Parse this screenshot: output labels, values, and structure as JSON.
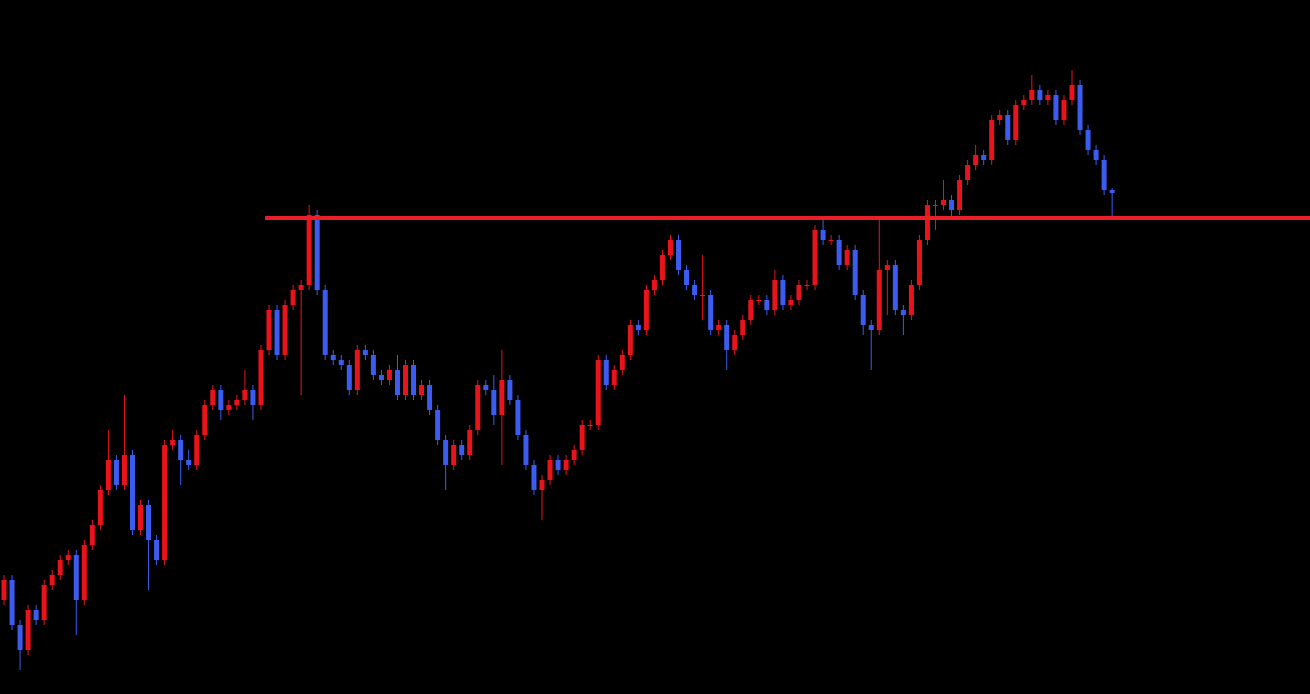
{
  "chart_data": {
    "type": "candlestick",
    "ylim": [
      0,
      694
    ],
    "up_color": "#e8141c",
    "down_color": "#3c5cf0",
    "level": 476,
    "level_color": "#e81e28",
    "open": [
      94,
      114,
      69,
      44,
      84,
      74,
      109,
      119,
      134,
      139,
      94,
      149,
      169,
      204,
      234,
      209,
      239,
      164,
      189,
      154,
      134,
      249,
      254,
      234,
      229,
      259,
      289,
      304,
      284,
      289,
      294,
      304,
      289,
      344,
      384,
      339,
      389,
      404,
      409,
      479,
      404,
      339,
      334,
      329,
      304,
      344,
      339,
      319,
      314,
      324,
      299,
      329,
      299,
      309,
      284,
      254,
      229,
      249,
      239,
      264,
      309,
      304,
      279,
      314,
      294,
      259,
      229,
      204,
      214,
      234,
      224,
      234,
      244,
      269,
      269,
      334,
      309,
      324,
      339,
      369,
      364,
      404,
      414,
      439,
      454,
      424,
      409,
      399,
      399,
      364,
      369,
      344,
      359,
      374,
      394,
      394,
      384,
      414,
      389,
      394,
      409,
      409,
      464,
      454,
      454,
      429,
      444,
      399,
      369,
      364,
      424,
      429,
      384,
      379,
      409,
      454,
      489,
      489,
      494,
      484,
      514,
      529,
      539,
      534,
      574,
      579,
      554,
      589,
      594,
      604,
      594,
      599,
      574,
      594,
      609,
      564,
      544,
      534,
      504
    ],
    "high": [
      119,
      119,
      74,
      89,
      89,
      114,
      124,
      139,
      144,
      144,
      154,
      174,
      209,
      264,
      239,
      299,
      244,
      194,
      194,
      159,
      254,
      264,
      259,
      244,
      264,
      294,
      309,
      309,
      294,
      299,
      324,
      309,
      349,
      389,
      389,
      394,
      409,
      414,
      489,
      484,
      409,
      344,
      339,
      334,
      349,
      349,
      344,
      324,
      329,
      339,
      334,
      334,
      314,
      314,
      289,
      259,
      254,
      254,
      269,
      314,
      314,
      319,
      344,
      319,
      299,
      264,
      234,
      219,
      239,
      239,
      239,
      249,
      274,
      274,
      339,
      339,
      329,
      344,
      374,
      374,
      409,
      419,
      444,
      459,
      459,
      429,
      414,
      439,
      404,
      374,
      374,
      364,
      379,
      399,
      399,
      399,
      424,
      419,
      399,
      414,
      414,
      469,
      474,
      459,
      459,
      449,
      449,
      404,
      374,
      474,
      434,
      434,
      389,
      414,
      459,
      494,
      494,
      514,
      499,
      519,
      534,
      549,
      544,
      579,
      584,
      584,
      594,
      599,
      619,
      609,
      604,
      604,
      599,
      624,
      614,
      569,
      549,
      539,
      506
    ],
    "low": [
      89,
      64,
      24,
      39,
      69,
      69,
      104,
      114,
      129,
      59,
      89,
      144,
      164,
      199,
      204,
      204,
      159,
      159,
      104,
      129,
      129,
      244,
      209,
      224,
      224,
      254,
      284,
      274,
      279,
      284,
      289,
      274,
      284,
      339,
      334,
      334,
      384,
      299,
      404,
      399,
      334,
      329,
      324,
      299,
      299,
      334,
      314,
      309,
      309,
      294,
      294,
      294,
      294,
      279,
      249,
      204,
      224,
      234,
      234,
      259,
      299,
      269,
      229,
      289,
      254,
      224,
      199,
      174,
      209,
      219,
      219,
      229,
      239,
      264,
      264,
      304,
      304,
      319,
      334,
      359,
      359,
      399,
      409,
      434,
      419,
      404,
      394,
      374,
      359,
      359,
      324,
      339,
      354,
      369,
      389,
      379,
      379,
      384,
      384,
      389,
      404,
      404,
      449,
      449,
      424,
      424,
      394,
      359,
      324,
      359,
      379,
      379,
      359,
      374,
      404,
      449,
      464,
      484,
      474,
      479,
      509,
      524,
      529,
      529,
      569,
      549,
      549,
      584,
      589,
      589,
      589,
      569,
      569,
      589,
      559,
      539,
      529,
      499,
      476
    ],
    "close": [
      114,
      69,
      44,
      84,
      74,
      109,
      119,
      134,
      139,
      94,
      149,
      169,
      204,
      234,
      209,
      239,
      164,
      189,
      154,
      134,
      249,
      254,
      234,
      229,
      259,
      289,
      304,
      284,
      289,
      294,
      304,
      289,
      344,
      384,
      339,
      389,
      404,
      409,
      479,
      404,
      339,
      334,
      329,
      304,
      344,
      339,
      319,
      314,
      324,
      299,
      329,
      299,
      309,
      284,
      254,
      229,
      249,
      239,
      264,
      309,
      304,
      279,
      314,
      294,
      259,
      229,
      204,
      214,
      234,
      224,
      234,
      244,
      269,
      269,
      334,
      309,
      324,
      339,
      369,
      364,
      404,
      414,
      439,
      454,
      424,
      409,
      399,
      399,
      364,
      369,
      344,
      359,
      374,
      394,
      394,
      384,
      414,
      389,
      394,
      409,
      409,
      464,
      454,
      454,
      429,
      444,
      399,
      369,
      364,
      424,
      429,
      384,
      379,
      409,
      454,
      489,
      489,
      494,
      484,
      514,
      529,
      539,
      534,
      574,
      579,
      554,
      589,
      594,
      604,
      594,
      599,
      574,
      594,
      609,
      564,
      544,
      534,
      504,
      501
    ]
  }
}
